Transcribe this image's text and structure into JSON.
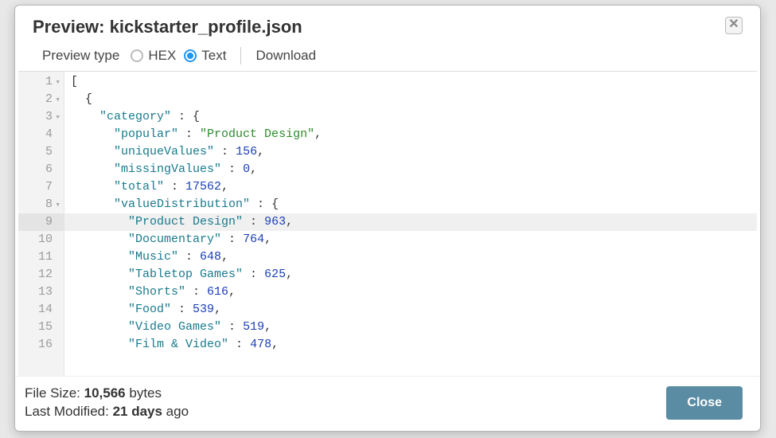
{
  "header": {
    "title_prefix": "Preview: ",
    "filename": "kickstarter_profile.json"
  },
  "toolbar": {
    "preview_type_label": "Preview type",
    "options": {
      "hex": "HEX",
      "text": "Text"
    },
    "selected": "text",
    "download_label": "Download"
  },
  "code": {
    "highlighted_line_index": 8,
    "lines": [
      {
        "n": 1,
        "foldable": true,
        "indent": 0,
        "tokens": [
          {
            "t": "[",
            "c": "punc"
          }
        ]
      },
      {
        "n": 2,
        "foldable": true,
        "indent": 2,
        "tokens": [
          {
            "t": "{",
            "c": "punc"
          }
        ]
      },
      {
        "n": 3,
        "foldable": true,
        "indent": 4,
        "tokens": [
          {
            "t": "\"category\"",
            "c": "key"
          },
          {
            "t": " : ",
            "c": "punc"
          },
          {
            "t": "{",
            "c": "punc"
          }
        ]
      },
      {
        "n": 4,
        "foldable": false,
        "indent": 6,
        "tokens": [
          {
            "t": "\"popular\"",
            "c": "key"
          },
          {
            "t": " : ",
            "c": "punc"
          },
          {
            "t": "\"Product Design\"",
            "c": "str"
          },
          {
            "t": ",",
            "c": "punc"
          }
        ]
      },
      {
        "n": 5,
        "foldable": false,
        "indent": 6,
        "tokens": [
          {
            "t": "\"uniqueValues\"",
            "c": "key"
          },
          {
            "t": " : ",
            "c": "punc"
          },
          {
            "t": "156",
            "c": "num"
          },
          {
            "t": ",",
            "c": "punc"
          }
        ]
      },
      {
        "n": 6,
        "foldable": false,
        "indent": 6,
        "tokens": [
          {
            "t": "\"missingValues\"",
            "c": "key"
          },
          {
            "t": " : ",
            "c": "punc"
          },
          {
            "t": "0",
            "c": "num"
          },
          {
            "t": ",",
            "c": "punc"
          }
        ]
      },
      {
        "n": 7,
        "foldable": false,
        "indent": 6,
        "tokens": [
          {
            "t": "\"total\"",
            "c": "key"
          },
          {
            "t": " : ",
            "c": "punc"
          },
          {
            "t": "17562",
            "c": "num"
          },
          {
            "t": ",",
            "c": "punc"
          }
        ]
      },
      {
        "n": 8,
        "foldable": true,
        "indent": 6,
        "tokens": [
          {
            "t": "\"valueDistribution\"",
            "c": "key"
          },
          {
            "t": " : ",
            "c": "punc"
          },
          {
            "t": "{",
            "c": "punc"
          }
        ]
      },
      {
        "n": 9,
        "foldable": false,
        "indent": 8,
        "tokens": [
          {
            "t": "\"Product Design\"",
            "c": "key"
          },
          {
            "t": " : ",
            "c": "punc"
          },
          {
            "t": "963",
            "c": "num"
          },
          {
            "t": ",",
            "c": "punc"
          }
        ]
      },
      {
        "n": 10,
        "foldable": false,
        "indent": 8,
        "tokens": [
          {
            "t": "\"Documentary\"",
            "c": "key"
          },
          {
            "t": " : ",
            "c": "punc"
          },
          {
            "t": "764",
            "c": "num"
          },
          {
            "t": ",",
            "c": "punc"
          }
        ]
      },
      {
        "n": 11,
        "foldable": false,
        "indent": 8,
        "tokens": [
          {
            "t": "\"Music\"",
            "c": "key"
          },
          {
            "t": " : ",
            "c": "punc"
          },
          {
            "t": "648",
            "c": "num"
          },
          {
            "t": ",",
            "c": "punc"
          }
        ]
      },
      {
        "n": 12,
        "foldable": false,
        "indent": 8,
        "tokens": [
          {
            "t": "\"Tabletop Games\"",
            "c": "key"
          },
          {
            "t": " : ",
            "c": "punc"
          },
          {
            "t": "625",
            "c": "num"
          },
          {
            "t": ",",
            "c": "punc"
          }
        ]
      },
      {
        "n": 13,
        "foldable": false,
        "indent": 8,
        "tokens": [
          {
            "t": "\"Shorts\"",
            "c": "key"
          },
          {
            "t": " : ",
            "c": "punc"
          },
          {
            "t": "616",
            "c": "num"
          },
          {
            "t": ",",
            "c": "punc"
          }
        ]
      },
      {
        "n": 14,
        "foldable": false,
        "indent": 8,
        "tokens": [
          {
            "t": "\"Food\"",
            "c": "key"
          },
          {
            "t": " : ",
            "c": "punc"
          },
          {
            "t": "539",
            "c": "num"
          },
          {
            "t": ",",
            "c": "punc"
          }
        ]
      },
      {
        "n": 15,
        "foldable": false,
        "indent": 8,
        "tokens": [
          {
            "t": "\"Video Games\"",
            "c": "key"
          },
          {
            "t": " : ",
            "c": "punc"
          },
          {
            "t": "519",
            "c": "num"
          },
          {
            "t": ",",
            "c": "punc"
          }
        ]
      },
      {
        "n": 16,
        "foldable": false,
        "indent": 8,
        "tokens": [
          {
            "t": "\"Film & Video\"",
            "c": "key"
          },
          {
            "t": " : ",
            "c": "punc"
          },
          {
            "t": "478",
            "c": "num"
          },
          {
            "t": ",",
            "c": "punc"
          }
        ]
      }
    ]
  },
  "footer": {
    "file_size_label": "File Size: ",
    "file_size_value": "10,566",
    "file_size_unit": " bytes",
    "last_modified_label": "Last Modified: ",
    "last_modified_value": "21 days",
    "last_modified_suffix": " ago",
    "close_label": "Close"
  }
}
